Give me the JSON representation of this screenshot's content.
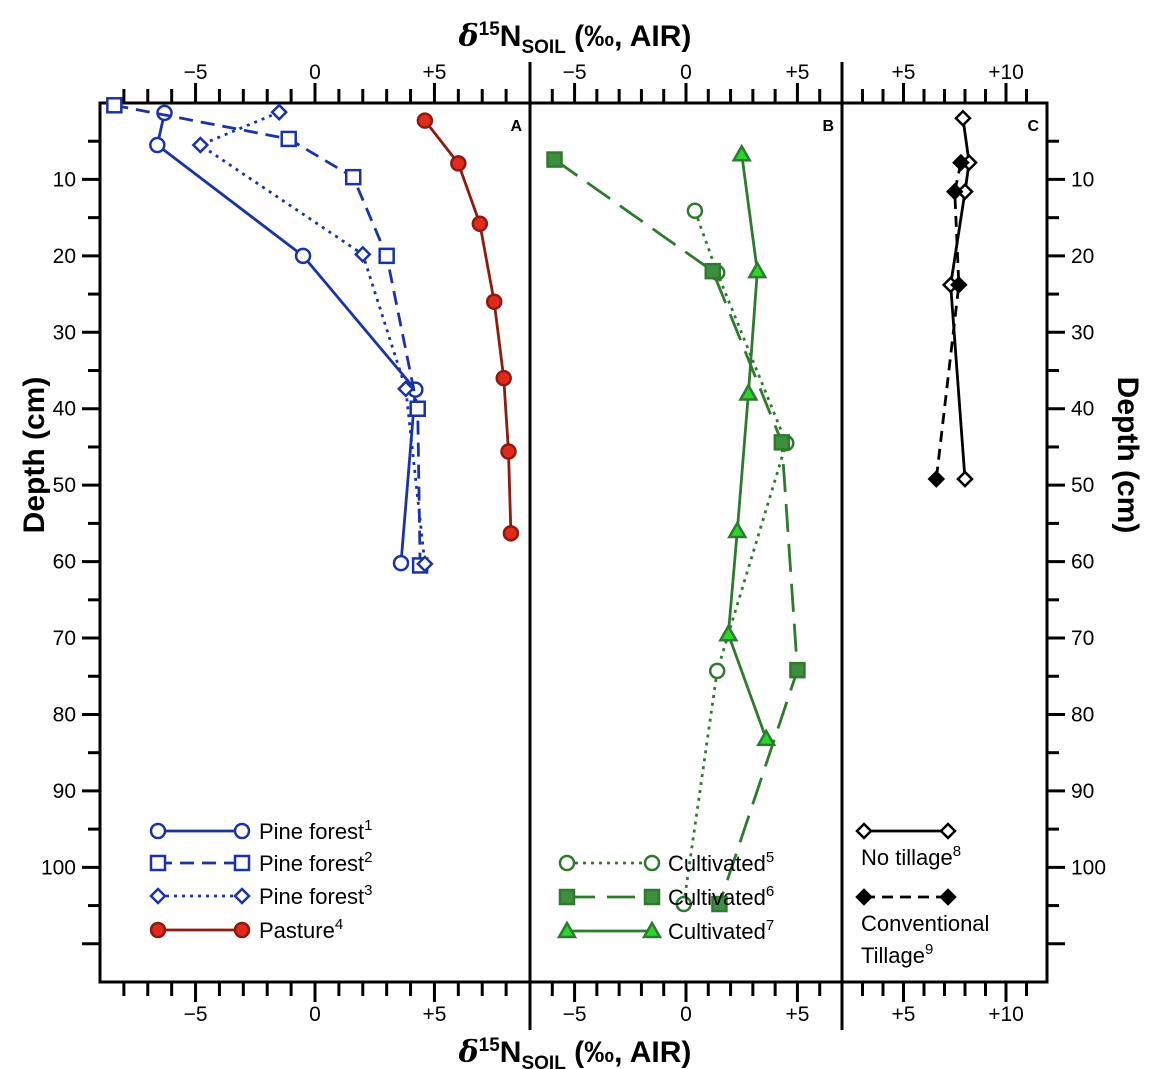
{
  "chart_data": {
    "type": "line",
    "title": "",
    "top_xlabel": {
      "pre": "δ",
      "sup": "15",
      "main": "N",
      "sub": "SOIL",
      "post": " (‰, AIR)"
    },
    "bottom_xlabel": {
      "pre": "δ",
      "sup": "15",
      "main": "N",
      "sub": "SOIL",
      "post": " (‰, AIR)"
    },
    "ylabel_left": "Depth (cm)",
    "ylabel_right": "Depth (cm)",
    "ylim": [
      0,
      115
    ],
    "y_ticks": [
      10,
      20,
      30,
      40,
      50,
      60,
      70,
      80,
      90,
      100
    ],
    "y_tick_labels": [
      "10",
      "20",
      "30",
      "40",
      "50",
      "60",
      "70",
      "80",
      "90",
      "100"
    ],
    "panels": [
      {
        "letter": "A",
        "xlim": [
          -9,
          9
        ],
        "x_tick_labels": [
          {
            "v": -5,
            "t": "−5"
          },
          {
            "v": 0,
            "t": "0"
          },
          {
            "v": 5,
            "t": "+5"
          }
        ],
        "series": [
          {
            "name": "Pine forest",
            "sup": "1",
            "color": "#1a33a6",
            "dash": "",
            "marker": "circle",
            "fill": "#ffffff",
            "points": [
              [
                -6.3,
                1.3
              ],
              [
                -6.6,
                5.5
              ],
              [
                -0.5,
                20
              ],
              [
                4.2,
                37.5
              ],
              [
                3.6,
                60.2
              ]
            ]
          },
          {
            "name": "Pine forest",
            "sup": "2",
            "color": "#1a33a6",
            "dash": "14,8",
            "marker": "square",
            "fill": "#ffffff",
            "points": [
              [
                -8.4,
                0.3
              ],
              [
                -1.1,
                4.7
              ],
              [
                1.6,
                9.7
              ],
              [
                3.0,
                20
              ],
              [
                4.3,
                40
              ],
              [
                4.4,
                60.5
              ]
            ]
          },
          {
            "name": "Pine forest",
            "sup": "3",
            "color": "#1a33a6",
            "dash": "3,5",
            "marker": "diamond",
            "fill": "#ffffff",
            "points": [
              [
                -1.5,
                1.2
              ],
              [
                -4.8,
                5.5
              ],
              [
                2.0,
                19.8
              ],
              [
                3.8,
                37.4
              ],
              [
                4.6,
                60.3
              ]
            ]
          },
          {
            "name": "Pasture",
            "sup": "4",
            "color": "#8f1a0f",
            "dash": "",
            "marker": "circle",
            "fill": "#e02a1b",
            "points": [
              [
                4.6,
                2.3
              ],
              [
                6.0,
                7.9
              ],
              [
                6.9,
                15.8
              ],
              [
                7.5,
                26
              ],
              [
                7.9,
                36
              ],
              [
                8.1,
                45.6
              ],
              [
                8.2,
                56.3
              ]
            ]
          }
        ]
      },
      {
        "letter": "B",
        "xlim": [
          -7,
          7
        ],
        "x_tick_labels": [
          {
            "v": -5,
            "t": "−5"
          },
          {
            "v": 0,
            "t": "0"
          },
          {
            "v": 5,
            "t": "+5"
          }
        ],
        "series": [
          {
            "name": "Cultivated",
            "sup": "5",
            "color": "#2e7a2e",
            "dash": "3,5",
            "marker": "circle",
            "fill": "#ffffff",
            "points": [
              [
                0.4,
                14.1
              ],
              [
                1.4,
                22.2
              ],
              [
                4.5,
                44.5
              ],
              [
                1.4,
                74.3
              ],
              [
                -0.1,
                104.8
              ]
            ]
          },
          {
            "name": "Cultivated",
            "sup": "6",
            "color": "#2e7a2e",
            "dash": "28,12",
            "marker": "square",
            "fill": "#3d8f3d",
            "points": [
              [
                -5.9,
                7.4
              ],
              [
                1.2,
                22
              ],
              [
                4.3,
                44.4
              ],
              [
                5.0,
                74.2
              ],
              [
                1.5,
                104.8
              ]
            ]
          },
          {
            "name": "Cultivated",
            "sup": "7",
            "color": "#2e7a2e",
            "dash": "",
            "marker": "triangle",
            "fill": "#2bd62b",
            "points": [
              [
                2.5,
                6.7
              ],
              [
                3.2,
                22
              ],
              [
                2.8,
                38
              ],
              [
                2.3,
                56
              ],
              [
                1.9,
                69.5
              ],
              [
                3.6,
                83.2
              ]
            ]
          }
        ]
      },
      {
        "letter": "C",
        "xlim": [
          2,
          12
        ],
        "x_tick_labels": [
          {
            "v": 5,
            "t": "+5"
          },
          {
            "v": 10,
            "t": "+10"
          }
        ],
        "series": [
          {
            "name": "No tillage",
            "sup": "8",
            "color": "#000000",
            "dash": "",
            "marker": "diamond",
            "fill": "#ffffff",
            "points": [
              [
                7.9,
                2
              ],
              [
                8.2,
                7.8
              ],
              [
                8.0,
                11.6
              ],
              [
                7.3,
                23.8
              ],
              [
                8.0,
                49.2
              ]
            ]
          },
          {
            "name": "Conventional Tillage",
            "sup": "9",
            "color": "#000000",
            "dash": "11,7",
            "marker": "diamond",
            "fill": "#000000",
            "points": [
              [
                7.8,
                7.8
              ],
              [
                7.5,
                11.6
              ],
              [
                7.7,
                23.8
              ],
              [
                6.6,
                49.2
              ]
            ]
          }
        ]
      }
    ],
    "legend": [
      {
        "panel": 0,
        "items": [
          {
            "series": 0,
            "lines": [
              "Pine forest"
            ],
            "sup": "1"
          },
          {
            "series": 1,
            "lines": [
              "Pine forest"
            ],
            "sup": "2"
          },
          {
            "series": 2,
            "lines": [
              "Pine forest"
            ],
            "sup": "3"
          },
          {
            "series": 3,
            "lines": [
              "Pasture"
            ],
            "sup": "4"
          }
        ]
      },
      {
        "panel": 1,
        "items": [
          {
            "series": 0,
            "lines": [
              "Cultivated"
            ],
            "sup": "5"
          },
          {
            "series": 1,
            "lines": [
              "Cultivated"
            ],
            "sup": "6"
          },
          {
            "series": 2,
            "lines": [
              "Cultivated"
            ],
            "sup": "7"
          }
        ]
      },
      {
        "panel": 2,
        "items": [
          {
            "series": 0,
            "lines": [
              "No tillage"
            ],
            "sup": "8"
          },
          {
            "series": 1,
            "lines": [
              "Conventional",
              "Tillage"
            ],
            "sup": "9"
          }
        ]
      }
    ]
  }
}
